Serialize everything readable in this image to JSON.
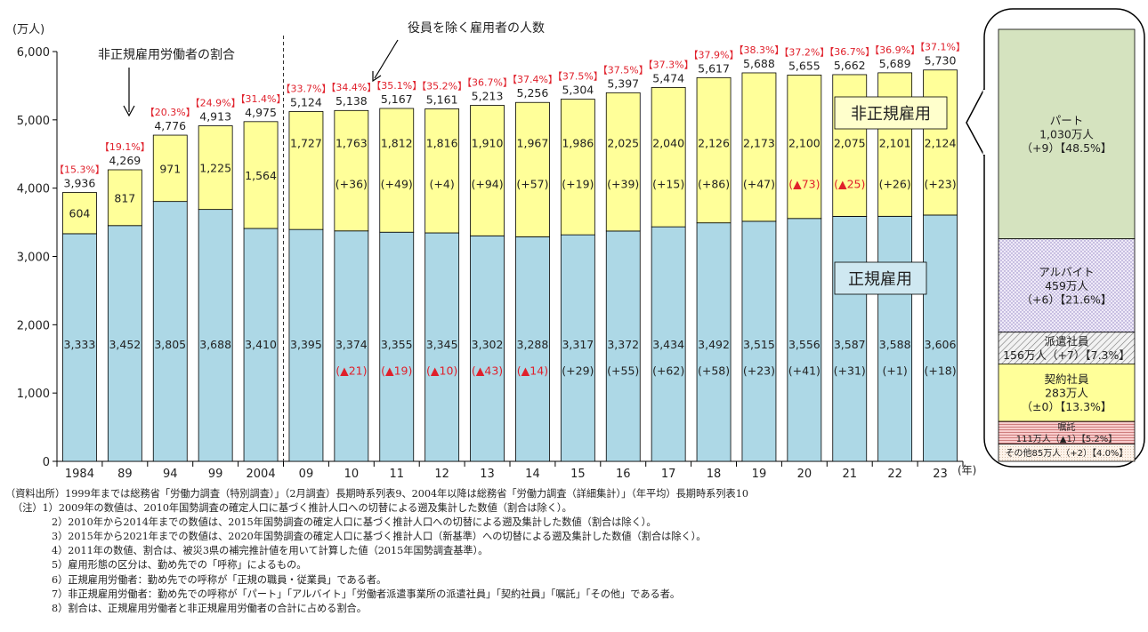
{
  "chart_data": {
    "type": "bar",
    "stacked": true,
    "categories": [
      "1984",
      "89",
      "94",
      "99",
      "2004",
      "09",
      "10",
      "11",
      "12",
      "13",
      "14",
      "15",
      "16",
      "17",
      "18",
      "19",
      "20",
      "21",
      "22",
      "23"
    ],
    "x_unit": "(年)",
    "y_unit": "(万人)",
    "ylim": [
      0,
      6000
    ],
    "yticks": [
      0,
      1000,
      2000,
      3000,
      4000,
      5000,
      6000
    ],
    "ytick_labels": [
      "0",
      "1,000",
      "2,000",
      "3,000",
      "4,000",
      "5,000",
      "6,000"
    ],
    "series": [
      {
        "name": "正規雇用",
        "color": "#add8e6",
        "values": [
          3333,
          3452,
          3805,
          3688,
          3410,
          3395,
          3374,
          3355,
          3345,
          3302,
          3288,
          3317,
          3372,
          3434,
          3492,
          3515,
          3556,
          3587,
          3588,
          3606
        ],
        "labels": [
          "3,333",
          "3,452",
          "3,805",
          "3,688",
          "3,410",
          "3,395",
          "3,374",
          "3,355",
          "3,345",
          "3,302",
          "3,288",
          "3,317",
          "3,372",
          "3,434",
          "3,492",
          "3,515",
          "3,556",
          "3,587",
          "3,588",
          "3,606"
        ],
        "changes": [
          "",
          "",
          "",
          "",
          "",
          "",
          "▲21",
          "▲19",
          "▲10",
          "▲43",
          "▲14",
          "+29",
          "+55",
          "+62",
          "+58",
          "+23",
          "+41",
          "+31",
          "+1",
          "+18"
        ]
      },
      {
        "name": "非正規雇用",
        "color": "#ffff99",
        "values": [
          604,
          817,
          971,
          1225,
          1564,
          1727,
          1763,
          1812,
          1816,
          1910,
          1967,
          1986,
          2025,
          2040,
          2126,
          2173,
          2100,
          2075,
          2101,
          2124
        ],
        "labels": [
          "604",
          "817",
          "971",
          "1,225",
          "1,564",
          "1,727",
          "1,763",
          "1,812",
          "1,816",
          "1,910",
          "1,967",
          "1,986",
          "2,025",
          "2,040",
          "2,126",
          "2,173",
          "2,100",
          "2,075",
          "2,101",
          "2,124"
        ],
        "changes": [
          "",
          "",
          "",
          "",
          "",
          "",
          "+36",
          "+49",
          "+4",
          "+94",
          "+57",
          "+19",
          "+39",
          "+15",
          "+86",
          "+47",
          "▲73",
          "▲25",
          "+26",
          "+23"
        ]
      }
    ],
    "totals": [
      3936,
      4269,
      4776,
      4913,
      4975,
      5124,
      5138,
      5167,
      5161,
      5213,
      5256,
      5304,
      5397,
      5474,
      5617,
      5688,
      5655,
      5662,
      5689,
      5730
    ],
    "total_labels": [
      "3,936",
      "4,269",
      "4,776",
      "4,913",
      "4,975",
      "5,124",
      "5,138",
      "5,167",
      "5,161",
      "5,213",
      "5,256",
      "5,304",
      "5,397",
      "5,474",
      "5,617",
      "5,688",
      "5,655",
      "5,662",
      "5,689",
      "5,730"
    ],
    "nonregular_ratio_labels": [
      "【15.3%】",
      "【19.1%】",
      "【20.3%】",
      "【24.9%】",
      "【31.4%】",
      "【33.7%】",
      "【34.4%】",
      "【35.1%】",
      "【35.2%】",
      "【36.7%】",
      "【37.4%】",
      "【37.5%】",
      "【37.5%】",
      "【37.3%】",
      "【37.9%】",
      "【38.3%】",
      "【37.2%】",
      "【36.7%】",
      "【36.9%】",
      "【37.1%】"
    ],
    "annotations": {
      "ratio_note": "非正規雇用労働者の割合",
      "total_note": "役員を除く雇用者の人数",
      "nonregular_label": "非正規雇用",
      "regular_label": "正規雇用"
    },
    "breakdown_2023": [
      {
        "name": "パート",
        "value": 1030,
        "lines": [
          "パート",
          "1,030万人",
          "（+9）【48.5%】"
        ],
        "color": "#d5e3bf"
      },
      {
        "name": "アルバイト",
        "value": 459,
        "lines": [
          "アルバイト",
          "459万人",
          "（+6）【21.6%】"
        ],
        "color": "#e8e3f4"
      },
      {
        "name": "派遣社員",
        "value": 156,
        "lines": [
          "派遣社員",
          "156万人（+7）【7.3%】"
        ],
        "color": "#e9e9e9"
      },
      {
        "name": "契約社員",
        "value": 283,
        "lines": [
          "契約社員",
          "283万人",
          "（±0）【13.3%】"
        ],
        "color": "#ffff99"
      },
      {
        "name": "嘱託",
        "value": 111,
        "lines": [
          "嘱託",
          "111万人（▲1）【5.2%】"
        ],
        "color": "#f6c0bf"
      },
      {
        "name": "その他",
        "value": 85,
        "lines": [
          "その他85万人（+2）【4.0%】"
        ],
        "color": "#fdf3e9"
      }
    ],
    "colors": {
      "regular": "#add8e6",
      "nonregular": "#ffff99",
      "ratio_text": "#e0202b",
      "negative_change": "#e0202b"
    }
  },
  "notes": {
    "source": "（資料出所）1999年までは総務省「労働力調査（特別調査）」（2月調査）長期時系列表9、2004年以降は総務省「労働力調査（詳細集計）」（年平均）長期時系列表10",
    "items": [
      "（注）1）2009年の数値は、2010年国勢調査の確定人口に基づく推計人口への切替による遡及集計した数値（割合は除く）。",
      "2）2010年から2014年までの数値は、2015年国勢調査の確定人口に基づく推計人口への切替による遡及集計した数値（割合は除く）。",
      "3）2015年から2021年までの数値は、2020年国勢調査の確定人口に基づく推計人口（新基準）への切替による遡及集計した数値（割合は除く）。",
      "4）2011年の数値、割合は、被災3県の補完推計値を用いて計算した値（2015年国勢調査基準）。",
      "5）雇用形態の区分は、勤め先での「呼称」によるもの。",
      "6）正規雇用労働者：勤め先での呼称が「正規の職員・従業員」である者。",
      "7）非正規雇用労働者：勤め先での呼称が「パート」「アルバイト」「労働者派遣事業所の派遣社員」「契約社員」「嘱託」「その他」である者。",
      "8）割合は、正規雇用労働者と非正規雇用労働者の合計に占める割合。"
    ]
  }
}
